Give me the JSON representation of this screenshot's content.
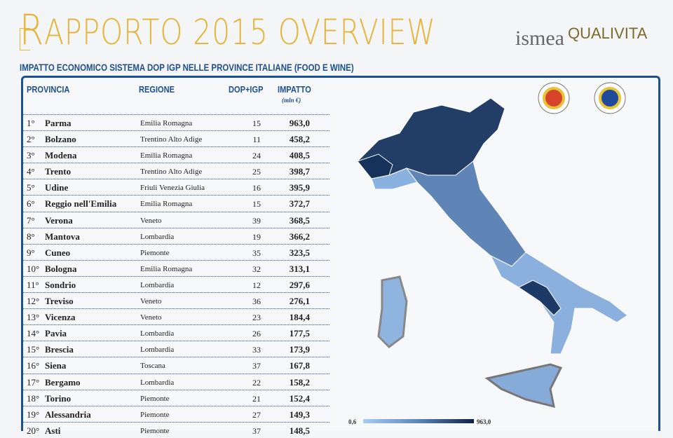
{
  "header": {
    "title_initial": "R",
    "title_rest": "apporto 2015 overview",
    "subtitle": "IMPATTO ECONOMICO SISTEMA DOP IGP NELLE PROVINCE ITALIANE (FOOD E WINE)",
    "logos": [
      "ismea",
      "Fondazione Qualivita"
    ]
  },
  "table": {
    "columns": [
      "PROVINCIA",
      "REGIONE",
      "DOP+IGP",
      "IMPATTO"
    ],
    "impact_unit": "(mln €)",
    "rows": [
      {
        "rank": "1°",
        "provincia": "Parma",
        "regione": "Emilia Romagna",
        "count": "15",
        "impatto": "963,0"
      },
      {
        "rank": "2°",
        "provincia": "Bolzano",
        "regione": "Trentino Alto Adige",
        "count": "11",
        "impatto": "458,2"
      },
      {
        "rank": "3°",
        "provincia": "Modena",
        "regione": "Emilia Romagna",
        "count": "24",
        "impatto": "408,5"
      },
      {
        "rank": "4°",
        "provincia": "Trento",
        "regione": "Trentino Alto Adige",
        "count": "25",
        "impatto": "398,7"
      },
      {
        "rank": "5°",
        "provincia": "Udine",
        "regione": "Friuli Venezia Giulia",
        "count": "16",
        "impatto": "395,9"
      },
      {
        "rank": "6°",
        "provincia": "Reggio nell'Emilia",
        "regione": "Emilia Romagna",
        "count": "15",
        "impatto": "372,7"
      },
      {
        "rank": "7°",
        "provincia": "Verona",
        "regione": "Veneto",
        "count": "39",
        "impatto": "368,5"
      },
      {
        "rank": "8°",
        "provincia": "Mantova",
        "regione": "Lombardia",
        "count": "19",
        "impatto": "366,2"
      },
      {
        "rank": "9°",
        "provincia": "Cuneo",
        "regione": "Piemonte",
        "count": "35",
        "impatto": "323,5"
      },
      {
        "rank": "10°",
        "provincia": "Bologna",
        "regione": "Emilia Romagna",
        "count": "32",
        "impatto": "313,1"
      },
      {
        "rank": "11°",
        "provincia": "Sondrio",
        "regione": "Lombardia",
        "count": "12",
        "impatto": "297,6"
      },
      {
        "rank": "12°",
        "provincia": "Treviso",
        "regione": "Veneto",
        "count": "36",
        "impatto": "276,1"
      },
      {
        "rank": "13°",
        "provincia": "Vicenza",
        "regione": "Veneto",
        "count": "23",
        "impatto": "184,4"
      },
      {
        "rank": "14°",
        "provincia": "Pavia",
        "regione": "Lombardia",
        "count": "26",
        "impatto": "177,5"
      },
      {
        "rank": "15°",
        "provincia": "Brescia",
        "regione": "Lombardia",
        "count": "33",
        "impatto": "173,9"
      },
      {
        "rank": "16°",
        "provincia": "Siena",
        "regione": "Toscana",
        "count": "37",
        "impatto": "167,8"
      },
      {
        "rank": "17°",
        "provincia": "Bergamo",
        "regione": "Lombardia",
        "count": "22",
        "impatto": "158,2"
      },
      {
        "rank": "18°",
        "provincia": "Torino",
        "regione": "Piemonte",
        "count": "21",
        "impatto": "152,4"
      },
      {
        "rank": "19°",
        "provincia": "Alessandria",
        "regione": "Piemonte",
        "count": "27",
        "impatto": "149,3"
      },
      {
        "rank": "20°",
        "provincia": "Asti",
        "regione": "Piemonte",
        "count": "37",
        "impatto": "148,5"
      }
    ]
  },
  "map": {
    "legend_min": "0,6",
    "legend_max": "963,0",
    "color_low": "#a8cdf2",
    "color_high": "#0e2344",
    "badges": [
      "DOP",
      "IGP"
    ]
  },
  "colors": {
    "title": "#e5b53e",
    "accent": "#1d4f91"
  }
}
